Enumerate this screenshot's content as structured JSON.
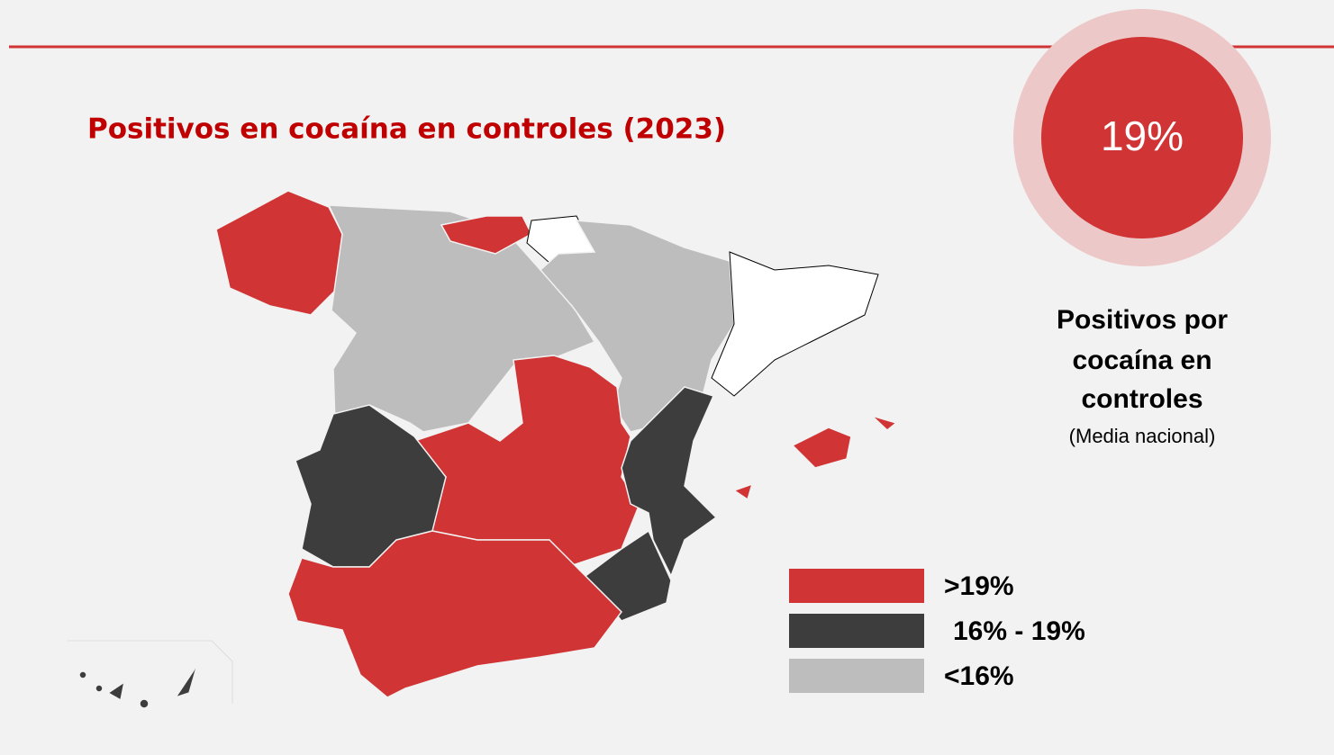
{
  "header": {
    "title": "Positivos en cocaína en controles (2023)"
  },
  "national": {
    "value_label": "19%",
    "lines": [
      "Positivos por",
      "cocaína en",
      "controles"
    ],
    "note": "(Media nacional)"
  },
  "legend": [
    {
      "label": ">19%",
      "color": "#d03434"
    },
    {
      "label": "16% - 19%",
      "color": "#3d3d3d"
    },
    {
      "label": "<16%",
      "color": "#bdbdbd"
    }
  ]
}
